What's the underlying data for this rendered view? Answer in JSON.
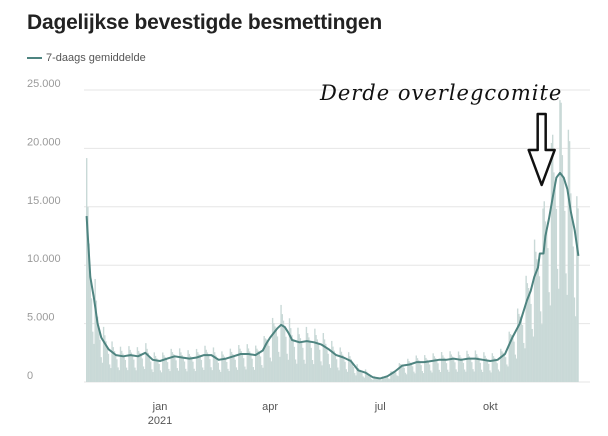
{
  "title": "Dagelijkse bevestigde besmettingen",
  "legend": {
    "label": "7-daags gemiddelde"
  },
  "colors": {
    "line": "#4e8480",
    "bars": "#c9d9d7",
    "grid": "#e6e6e6",
    "annotation": "#111111"
  },
  "annotation": {
    "text": "Derde overlegcomite",
    "target_month": 10.4
  },
  "chart_data": {
    "type": "bar",
    "title": "Dagelijkse bevestigde besmettingen",
    "xlabel": "",
    "ylabel": "",
    "ylim": [
      0,
      25000
    ],
    "yticks": [
      {
        "value": 0,
        "label": "0"
      },
      {
        "value": 5000,
        "label": "5.000"
      },
      {
        "value": 10000,
        "label": "10.000"
      },
      {
        "value": 15000,
        "label": "15.000"
      },
      {
        "value": 20000,
        "label": "20.000"
      },
      {
        "value": 25000,
        "label": "25.000"
      }
    ],
    "xticks": [
      {
        "month": 0,
        "label": "jan",
        "sub": "2021"
      },
      {
        "month": 3,
        "label": "apr",
        "sub": ""
      },
      {
        "month": 6,
        "label": "jul",
        "sub": ""
      },
      {
        "month": 9,
        "label": "okt",
        "sub": ""
      }
    ],
    "x_unit": "months since 2021-01-01",
    "grid": true,
    "legend_position": "top-left",
    "series": [
      {
        "name": "7-daags gemiddelde",
        "type": "line",
        "points": [
          [
            -2.0,
            14200
          ],
          [
            -1.9,
            9000
          ],
          [
            -1.8,
            7200
          ],
          [
            -1.7,
            5000
          ],
          [
            -1.6,
            3800
          ],
          [
            -1.5,
            3300
          ],
          [
            -1.4,
            2800
          ],
          [
            -1.2,
            2300
          ],
          [
            -1.0,
            2200
          ],
          [
            -0.8,
            2300
          ],
          [
            -0.6,
            2200
          ],
          [
            -0.4,
            2500
          ],
          [
            -0.2,
            1900
          ],
          [
            0.0,
            1800
          ],
          [
            0.2,
            2000
          ],
          [
            0.4,
            2200
          ],
          [
            0.6,
            2100
          ],
          [
            0.8,
            2000
          ],
          [
            1.0,
            2100
          ],
          [
            1.2,
            2300
          ],
          [
            1.4,
            2300
          ],
          [
            1.6,
            1900
          ],
          [
            1.8,
            2000
          ],
          [
            2.0,
            2200
          ],
          [
            2.2,
            2400
          ],
          [
            2.4,
            2400
          ],
          [
            2.6,
            2300
          ],
          [
            2.8,
            2700
          ],
          [
            2.9,
            3300
          ],
          [
            3.0,
            3800
          ],
          [
            3.2,
            4600
          ],
          [
            3.3,
            4900
          ],
          [
            3.4,
            4700
          ],
          [
            3.5,
            4200
          ],
          [
            3.6,
            3600
          ],
          [
            3.8,
            3400
          ],
          [
            4.0,
            3500
          ],
          [
            4.2,
            3400
          ],
          [
            4.4,
            3200
          ],
          [
            4.6,
            2800
          ],
          [
            4.8,
            2300
          ],
          [
            5.0,
            2100
          ],
          [
            5.2,
            1800
          ],
          [
            5.4,
            1000
          ],
          [
            5.6,
            800
          ],
          [
            5.8,
            400
          ],
          [
            6.0,
            300
          ],
          [
            6.2,
            500
          ],
          [
            6.4,
            900
          ],
          [
            6.6,
            1400
          ],
          [
            6.8,
            1500
          ],
          [
            7.0,
            1700
          ],
          [
            7.2,
            1700
          ],
          [
            7.4,
            1800
          ],
          [
            7.6,
            1900
          ],
          [
            7.8,
            1900
          ],
          [
            8.0,
            2000
          ],
          [
            8.2,
            1900
          ],
          [
            8.4,
            2000
          ],
          [
            8.6,
            2000
          ],
          [
            8.8,
            1900
          ],
          [
            9.0,
            1800
          ],
          [
            9.2,
            1900
          ],
          [
            9.4,
            2400
          ],
          [
            9.6,
            3800
          ],
          [
            9.8,
            5000
          ],
          [
            10.0,
            7000
          ],
          [
            10.1,
            7800
          ],
          [
            10.2,
            9000
          ],
          [
            10.3,
            9800
          ],
          [
            10.35,
            11000
          ],
          [
            10.45,
            11000
          ],
          [
            10.5,
            12500
          ],
          [
            10.6,
            14000
          ],
          [
            10.7,
            15800
          ],
          [
            10.8,
            17500
          ],
          [
            10.9,
            17900
          ],
          [
            11.0,
            17500
          ],
          [
            11.1,
            16500
          ],
          [
            11.2,
            14500
          ],
          [
            11.3,
            13000
          ],
          [
            11.4,
            10800
          ]
        ]
      }
    ]
  }
}
